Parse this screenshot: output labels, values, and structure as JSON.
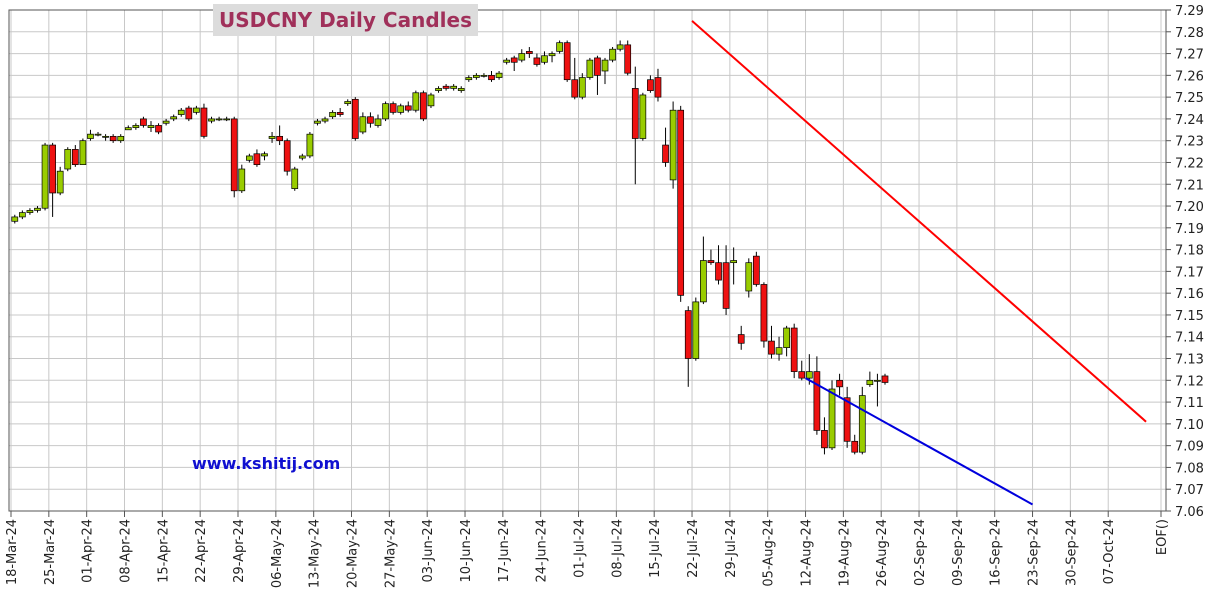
{
  "colors": {
    "up": "#99cc00",
    "down": "#ee1111",
    "upper_trendline": "#ff0000",
    "lower_trendline": "#0000dd",
    "grid": "#c8c8c8",
    "title": "#a0305a",
    "watermark": "#1010d0"
  },
  "chart_data": {
    "type": "candlestick",
    "title": "USDCNY Daily Candles",
    "watermark": "www.kshitij.com",
    "ylim": [
      7.06,
      7.29
    ],
    "yticks": [
      7.06,
      7.07,
      7.08,
      7.09,
      7.1,
      7.11,
      7.12,
      7.13,
      7.14,
      7.15,
      7.16,
      7.17,
      7.18,
      7.19,
      7.2,
      7.21,
      7.22,
      7.23,
      7.24,
      7.25,
      7.26,
      7.27,
      7.28,
      7.29
    ],
    "ytick_labels": [
      "7.06",
      "7.07",
      "7.08",
      "7.09",
      "7.10",
      "7.11",
      "7.12",
      "7.13",
      "7.14",
      "7.15",
      "7.16",
      "7.17",
      "7.18",
      "7.19",
      "7.20",
      "7.21",
      "7.22",
      "7.23",
      "7.24",
      "7.25",
      "7.26",
      "7.27",
      "7.28",
      "7.29"
    ],
    "xtick_labels": [
      "18-Mar-24",
      "25-Mar-24",
      "01-Apr-24",
      "08-Apr-24",
      "15-Apr-24",
      "22-Apr-24",
      "29-Apr-24",
      "06-May-24",
      "13-May-24",
      "20-May-24",
      "27-May-24",
      "03-Jun-24",
      "10-Jun-24",
      "17-Jun-24",
      "24-Jun-24",
      "01-Jul-24",
      "08-Jul-24",
      "15-Jul-24",
      "22-Jul-24",
      "29-Jul-24",
      "05-Aug-24",
      "12-Aug-24",
      "19-Aug-24",
      "26-Aug-24",
      "02-Sep-24",
      "09-Sep-24",
      "16-Sep-24",
      "23-Sep-24",
      "30-Sep-24",
      "07-Oct-24",
      "EOF()"
    ],
    "legend": "none",
    "grid": true,
    "trendlines": [
      {
        "from": {
          "day": 90,
          "value": 7.285
        },
        "to": {
          "day": 150,
          "value": 7.101
        }
      },
      {
        "from": {
          "day": 105,
          "value": 7.121
        },
        "to": {
          "day": 135,
          "value": 7.063
        }
      }
    ],
    "candles": [
      {
        "o": 7.193,
        "h": 7.196,
        "l": 7.192,
        "c": 7.195
      },
      {
        "o": 7.195,
        "h": 7.198,
        "l": 7.194,
        "c": 7.197
      },
      {
        "o": 7.197,
        "h": 7.199,
        "l": 7.196,
        "c": 7.198
      },
      {
        "o": 7.198,
        "h": 7.2,
        "l": 7.197,
        "c": 7.199
      },
      {
        "o": 7.199,
        "h": 7.229,
        "l": 7.198,
        "c": 7.228
      },
      {
        "o": 7.228,
        "h": 7.229,
        "l": 7.195,
        "c": 7.206
      },
      {
        "o": 7.206,
        "h": 7.218,
        "l": 7.205,
        "c": 7.216
      },
      {
        "o": 7.217,
        "h": 7.227,
        "l": 7.216,
        "c": 7.226
      },
      {
        "o": 7.226,
        "h": 7.228,
        "l": 7.218,
        "c": 7.219
      },
      {
        "o": 7.219,
        "h": 7.231,
        "l": 7.219,
        "c": 7.23
      },
      {
        "o": 7.231,
        "h": 7.235,
        "l": 7.23,
        "c": 7.233
      },
      {
        "o": 7.233,
        "h": 7.234,
        "l": 7.232,
        "c": 7.233
      },
      {
        "o": 7.232,
        "h": 7.233,
        "l": 7.23,
        "c": 7.232
      },
      {
        "o": 7.232,
        "h": 7.233,
        "l": 7.229,
        "c": 7.23
      },
      {
        "o": 7.23,
        "h": 7.233,
        "l": 7.229,
        "c": 7.232
      },
      {
        "o": 7.235,
        "h": 7.237,
        "l": 7.235,
        "c": 7.236
      },
      {
        "o": 7.236,
        "h": 7.238,
        "l": 7.235,
        "c": 7.237
      },
      {
        "o": 7.24,
        "h": 7.241,
        "l": 7.236,
        "c": 7.237
      },
      {
        "o": 7.236,
        "h": 7.239,
        "l": 7.234,
        "c": 7.237
      },
      {
        "o": 7.237,
        "h": 7.238,
        "l": 7.233,
        "c": 7.234
      },
      {
        "o": 7.238,
        "h": 7.24,
        "l": 7.237,
        "c": 7.239
      },
      {
        "o": 7.24,
        "h": 7.242,
        "l": 7.239,
        "c": 7.241
      },
      {
        "o": 7.242,
        "h": 7.245,
        "l": 7.241,
        "c": 7.244
      },
      {
        "o": 7.245,
        "h": 7.246,
        "l": 7.239,
        "c": 7.24
      },
      {
        "o": 7.243,
        "h": 7.246,
        "l": 7.242,
        "c": 7.245
      },
      {
        "o": 7.245,
        "h": 7.247,
        "l": 7.231,
        "c": 7.232
      },
      {
        "o": 7.239,
        "h": 7.241,
        "l": 7.238,
        "c": 7.24
      },
      {
        "o": 7.24,
        "h": 7.241,
        "l": 7.239,
        "c": 7.24
      },
      {
        "o": 7.24,
        "h": 7.241,
        "l": 7.239,
        "c": 7.24
      },
      {
        "o": 7.24,
        "h": 7.241,
        "l": 7.204,
        "c": 7.207
      },
      {
        "o": 7.207,
        "h": 7.219,
        "l": 7.206,
        "c": 7.217
      },
      {
        "o": 7.221,
        "h": 7.224,
        "l": 7.22,
        "c": 7.223
      },
      {
        "o": 7.224,
        "h": 7.226,
        "l": 7.218,
        "c": 7.219
      },
      {
        "o": 7.223,
        "h": 7.225,
        "l": 7.221,
        "c": 7.224
      },
      {
        "o": 7.231,
        "h": 7.234,
        "l": 7.229,
        "c": 7.232
      },
      {
        "o": 7.232,
        "h": 7.237,
        "l": 7.228,
        "c": 7.23
      },
      {
        "o": 7.23,
        "h": 7.231,
        "l": 7.214,
        "c": 7.216
      },
      {
        "o": 7.208,
        "h": 7.218,
        "l": 7.207,
        "c": 7.217
      },
      {
        "o": 7.222,
        "h": 7.224,
        "l": 7.221,
        "c": 7.223
      },
      {
        "o": 7.223,
        "h": 7.234,
        "l": 7.222,
        "c": 7.233
      },
      {
        "o": 7.238,
        "h": 7.24,
        "l": 7.237,
        "c": 7.239
      },
      {
        "o": 7.239,
        "h": 7.241,
        "l": 7.238,
        "c": 7.24
      },
      {
        "o": 7.241,
        "h": 7.244,
        "l": 7.24,
        "c": 7.243
      },
      {
        "o": 7.243,
        "h": 7.245,
        "l": 7.241,
        "c": 7.242
      },
      {
        "o": 7.247,
        "h": 7.249,
        "l": 7.246,
        "c": 7.248
      },
      {
        "o": 7.249,
        "h": 7.25,
        "l": 7.23,
        "c": 7.231
      },
      {
        "o": 7.234,
        "h": 7.243,
        "l": 7.233,
        "c": 7.241
      },
      {
        "o": 7.241,
        "h": 7.243,
        "l": 7.236,
        "c": 7.238
      },
      {
        "o": 7.237,
        "h": 7.242,
        "l": 7.236,
        "c": 7.24
      },
      {
        "o": 7.24,
        "h": 7.248,
        "l": 7.239,
        "c": 7.247
      },
      {
        "o": 7.247,
        "h": 7.248,
        "l": 7.242,
        "c": 7.243
      },
      {
        "o": 7.243,
        "h": 7.247,
        "l": 7.242,
        "c": 7.246
      },
      {
        "o": 7.246,
        "h": 7.248,
        "l": 7.243,
        "c": 7.244
      },
      {
        "o": 7.244,
        "h": 7.253,
        "l": 7.243,
        "c": 7.252
      },
      {
        "o": 7.252,
        "h": 7.253,
        "l": 7.239,
        "c": 7.24
      },
      {
        "o": 7.246,
        "h": 7.252,
        "l": 7.245,
        "c": 7.251
      },
      {
        "o": 7.253,
        "h": 7.255,
        "l": 7.252,
        "c": 7.254
      },
      {
        "o": 7.255,
        "h": 7.256,
        "l": 7.253,
        "c": 7.254
      },
      {
        "o": 7.254,
        "h": 7.256,
        "l": 7.253,
        "c": 7.255
      },
      {
        "o": 7.253,
        "h": 7.255,
        "l": 7.252,
        "c": 7.254
      },
      {
        "o": 7.258,
        "h": 7.26,
        "l": 7.257,
        "c": 7.259
      },
      {
        "o": 7.259,
        "h": 7.261,
        "l": 7.258,
        "c": 7.26
      },
      {
        "o": 7.26,
        "h": 7.261,
        "l": 7.259,
        "c": 7.26
      },
      {
        "o": 7.26,
        "h": 7.262,
        "l": 7.257,
        "c": 7.258
      },
      {
        "o": 7.259,
        "h": 7.262,
        "l": 7.258,
        "c": 7.261
      },
      {
        "o": 7.266,
        "h": 7.268,
        "l": 7.265,
        "c": 7.267
      },
      {
        "o": 7.268,
        "h": 7.269,
        "l": 7.262,
        "c": 7.266
      },
      {
        "o": 7.267,
        "h": 7.272,
        "l": 7.266,
        "c": 7.27
      },
      {
        "o": 7.271,
        "h": 7.273,
        "l": 7.268,
        "c": 7.27
      },
      {
        "o": 7.268,
        "h": 7.27,
        "l": 7.264,
        "c": 7.265
      },
      {
        "o": 7.266,
        "h": 7.271,
        "l": 7.265,
        "c": 7.269
      },
      {
        "o": 7.269,
        "h": 7.271,
        "l": 7.266,
        "c": 7.27
      },
      {
        "o": 7.271,
        "h": 7.276,
        "l": 7.27,
        "c": 7.275
      },
      {
        "o": 7.275,
        "h": 7.276,
        "l": 7.257,
        "c": 7.258
      },
      {
        "o": 7.258,
        "h": 7.268,
        "l": 7.249,
        "c": 7.25
      },
      {
        "o": 7.25,
        "h": 7.261,
        "l": 7.249,
        "c": 7.259
      },
      {
        "o": 7.259,
        "h": 7.268,
        "l": 7.258,
        "c": 7.267
      },
      {
        "o": 7.268,
        "h": 7.269,
        "l": 7.251,
        "c": 7.26
      },
      {
        "o": 7.262,
        "h": 7.268,
        "l": 7.256,
        "c": 7.267
      },
      {
        "o": 7.267,
        "h": 7.273,
        "l": 7.266,
        "c": 7.272
      },
      {
        "o": 7.272,
        "h": 7.276,
        "l": 7.271,
        "c": 7.274
      },
      {
        "o": 7.274,
        "h": 7.276,
        "l": 7.26,
        "c": 7.261
      },
      {
        "o": 7.254,
        "h": 7.264,
        "l": 7.21,
        "c": 7.231
      },
      {
        "o": 7.231,
        "h": 7.252,
        "l": 7.23,
        "c": 7.251
      },
      {
        "o": 7.258,
        "h": 7.26,
        "l": 7.252,
        "c": 7.253
      },
      {
        "o": 7.259,
        "h": 7.263,
        "l": 7.248,
        "c": 7.25
      },
      {
        "o": 7.228,
        "h": 7.236,
        "l": 7.218,
        "c": 7.22
      },
      {
        "o": 7.212,
        "h": 7.248,
        "l": 7.208,
        "c": 7.244
      },
      {
        "o": 7.244,
        "h": 7.246,
        "l": 7.156,
        "c": 7.159
      },
      {
        "o": 7.152,
        "h": 7.154,
        "l": 7.117,
        "c": 7.13
      },
      {
        "o": 7.13,
        "h": 7.158,
        "l": 7.129,
        "c": 7.156
      },
      {
        "o": 7.156,
        "h": 7.186,
        "l": 7.155,
        "c": 7.175
      },
      {
        "o": 7.175,
        "h": 7.18,
        "l": 7.173,
        "c": 7.174
      },
      {
        "o": 7.174,
        "h": 7.182,
        "l": 7.164,
        "c": 7.166
      },
      {
        "o": 7.174,
        "h": 7.182,
        "l": 7.15,
        "c": 7.153
      },
      {
        "o": 7.174,
        "h": 7.181,
        "l": 7.164,
        "c": 7.175
      },
      {
        "o": 7.141,
        "h": 7.145,
        "l": 7.134,
        "c": 7.137
      },
      {
        "o": 7.161,
        "h": 7.176,
        "l": 7.158,
        "c": 7.174
      },
      {
        "o": 7.177,
        "h": 7.179,
        "l": 7.163,
        "c": 7.164
      },
      {
        "o": 7.164,
        "h": 7.165,
        "l": 7.135,
        "c": 7.138
      },
      {
        "o": 7.138,
        "h": 7.145,
        "l": 7.13,
        "c": 7.132
      },
      {
        "o": 7.132,
        "h": 7.14,
        "l": 7.129,
        "c": 7.135
      },
      {
        "o": 7.135,
        "h": 7.145,
        "l": 7.131,
        "c": 7.144
      },
      {
        "o": 7.144,
        "h": 7.146,
        "l": 7.121,
        "c": 7.124
      },
      {
        "o": 7.124,
        "h": 7.129,
        "l": 7.12,
        "c": 7.121
      },
      {
        "o": 7.121,
        "h": 7.132,
        "l": 7.118,
        "c": 7.124
      },
      {
        "o": 7.124,
        "h": 7.131,
        "l": 7.095,
        "c": 7.097
      },
      {
        "o": 7.097,
        "h": 7.103,
        "l": 7.086,
        "c": 7.089
      },
      {
        "o": 7.089,
        "h": 7.12,
        "l": 7.088,
        "c": 7.116
      },
      {
        "o": 7.12,
        "h": 7.123,
        "l": 7.113,
        "c": 7.117
      },
      {
        "o": 7.112,
        "h": 7.117,
        "l": 7.089,
        "c": 7.092
      },
      {
        "o": 7.092,
        "h": 7.095,
        "l": 7.086,
        "c": 7.087
      },
      {
        "o": 7.087,
        "h": 7.117,
        "l": 7.086,
        "c": 7.113
      },
      {
        "o": 7.118,
        "h": 7.124,
        "l": 7.117,
        "c": 7.12
      },
      {
        "o": 7.12,
        "h": 7.123,
        "l": 7.108,
        "c": 7.12
      },
      {
        "o": 7.122,
        "h": 7.123,
        "l": 7.118,
        "c": 7.119
      }
    ]
  }
}
